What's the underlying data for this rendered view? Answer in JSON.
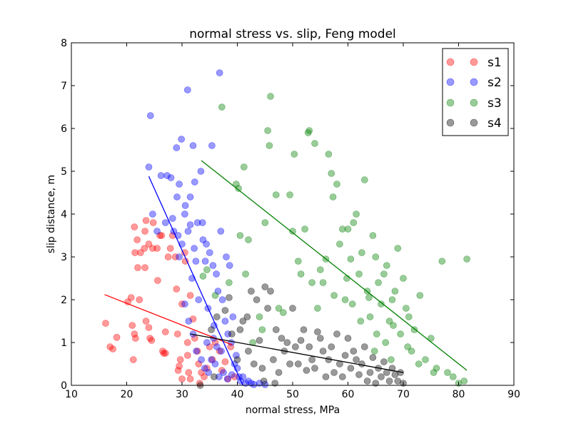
{
  "chart_data": {
    "type": "scatter",
    "title": "normal stress vs. slip, Feng model",
    "xlabel": "normal stress, MPa",
    "ylabel": "slip distance, m",
    "xlim": [
      10,
      90
    ],
    "ylim": [
      0,
      8
    ],
    "xticks": [
      10,
      20,
      30,
      40,
      50,
      60,
      70,
      80,
      90
    ],
    "yticks": [
      0,
      1,
      2,
      3,
      4,
      5,
      6,
      7,
      8
    ],
    "grid": false,
    "legend": "top-right",
    "series": [
      {
        "name": "s1",
        "color": "#ff0000",
        "fit": {
          "x": [
            16,
            39
          ],
          "y": [
            2.12,
            0.95
          ]
        },
        "points": [
          [
            16.2,
            1.45
          ],
          [
            17.0,
            0.9
          ],
          [
            17.5,
            0.85
          ],
          [
            18.2,
            1.12
          ],
          [
            20.2,
            1.95
          ],
          [
            20.8,
            2.05
          ],
          [
            21.0,
            1.4
          ],
          [
            21.4,
            1.2
          ],
          [
            21.6,
            1.1
          ],
          [
            21.2,
            0.6
          ],
          [
            21.5,
            3.1
          ],
          [
            21.4,
            3.7
          ],
          [
            21.9,
            3.4
          ],
          [
            22.0,
            2.75
          ],
          [
            22.3,
            2.0
          ],
          [
            22.5,
            3.1
          ],
          [
            23.2,
            3.2
          ],
          [
            23.3,
            3.6
          ],
          [
            23.5,
            3.85
          ],
          [
            23.3,
            2.75
          ],
          [
            23.5,
            1.5
          ],
          [
            24.0,
            1.35
          ],
          [
            24.2,
            1.1
          ],
          [
            24.5,
            1.05
          ],
          [
            24.0,
            3.3
          ],
          [
            24.8,
            3.8
          ],
          [
            24.7,
            3.2
          ],
          [
            25.5,
            3.2
          ],
          [
            25.6,
            2.45
          ],
          [
            26.0,
            3.5
          ],
          [
            26.3,
            3.5
          ],
          [
            26.5,
            0.8
          ],
          [
            26.7,
            0.75
          ],
          [
            27.0,
            1.25
          ],
          [
            27.0,
            0.75
          ],
          [
            27.5,
            3.0
          ],
          [
            27.9,
            3.2
          ],
          [
            28.3,
            3.5
          ],
          [
            28.8,
            3.0
          ],
          [
            29.0,
            2.25
          ],
          [
            29.2,
            1.2
          ],
          [
            29.3,
            0.35
          ],
          [
            29.5,
            0.45
          ],
          [
            29.7,
            0.6
          ],
          [
            30.0,
            0.15
          ],
          [
            30.5,
            3.1
          ],
          [
            30.6,
            2.9
          ],
          [
            31.0,
            1.0
          ],
          [
            31.0,
            0.7
          ],
          [
            31.2,
            0.3
          ],
          [
            31.5,
            0.15
          ],
          [
            32.0,
            1.55
          ],
          [
            32.3,
            1.1
          ],
          [
            32.8,
            0.8
          ],
          [
            33.0,
            0.5
          ],
          [
            33.5,
            0.3
          ],
          [
            34.0,
            0.2
          ],
          [
            34.5,
            0.4
          ],
          [
            35.0,
            0.9
          ],
          [
            35.5,
            0.6
          ],
          [
            36.0,
            1.0
          ],
          [
            36.8,
            0.8
          ],
          [
            37.2,
            0.35
          ],
          [
            37.8,
            0.55
          ],
          [
            38.3,
            0.15
          ],
          [
            38.8,
            0.9
          ],
          [
            39.5,
            0.2
          ],
          [
            30.0,
            1.9
          ],
          [
            31.5,
            2.1
          ],
          [
            33.2,
            0.05
          ]
        ]
      },
      {
        "name": "s2",
        "color": "#0000ff",
        "fit": {
          "x": [
            24,
            41
          ],
          "y": [
            4.88,
            0.0
          ]
        },
        "points": [
          [
            24.0,
            5.1
          ],
          [
            24.3,
            6.3
          ],
          [
            24.7,
            4.0
          ],
          [
            25.5,
            3.6
          ],
          [
            26.2,
            4.9
          ],
          [
            27.0,
            3.8
          ],
          [
            27.3,
            4.9
          ],
          [
            28.0,
            4.85
          ],
          [
            28.3,
            3.9
          ],
          [
            28.5,
            3.6
          ],
          [
            29.0,
            5.55
          ],
          [
            29.1,
            4.4
          ],
          [
            29.3,
            3.5
          ],
          [
            29.5,
            3.0
          ],
          [
            29.5,
            4.7
          ],
          [
            29.9,
            5.75
          ],
          [
            30.0,
            3.3
          ],
          [
            30.5,
            4.0
          ],
          [
            30.6,
            4.2
          ],
          [
            31.0,
            6.9
          ],
          [
            31.1,
            3.6
          ],
          [
            31.5,
            4.4
          ],
          [
            31.5,
            3.75
          ],
          [
            31.8,
            2.5
          ],
          [
            32.0,
            5.6
          ],
          [
            32.2,
            3.2
          ],
          [
            32.5,
            2.9
          ],
          [
            32.3,
            4.75
          ],
          [
            32.8,
            3.8
          ],
          [
            33.0,
            2.0
          ],
          [
            33.4,
            5.0
          ],
          [
            33.7,
            3.8
          ],
          [
            33.8,
            3.4
          ],
          [
            34.2,
            2.9
          ],
          [
            34.4,
            3.3
          ],
          [
            34.7,
            1.8
          ],
          [
            35.0,
            3.1
          ],
          [
            35.4,
            5.6
          ],
          [
            35.6,
            2.8
          ],
          [
            35.8,
            1.4
          ],
          [
            36.2,
            2.6
          ],
          [
            36.5,
            2.2
          ],
          [
            36.8,
            7.3
          ],
          [
            37.0,
            3.6
          ],
          [
            37.3,
            2.0
          ],
          [
            37.8,
            1.5
          ],
          [
            38.0,
            3.0
          ],
          [
            38.3,
            1.2
          ],
          [
            38.6,
            2.8
          ],
          [
            38.9,
            1.0
          ],
          [
            39.2,
            1.6
          ],
          [
            39.5,
            0.5
          ],
          [
            39.8,
            0.7
          ],
          [
            40.0,
            0.4
          ],
          [
            40.3,
            0.2
          ],
          [
            40.6,
            0.1
          ],
          [
            41.0,
            0.2
          ],
          [
            41.5,
            0.05
          ],
          [
            42.0,
            0.1
          ],
          [
            42.5,
            0.05
          ],
          [
            43.0,
            0.02
          ],
          [
            44.0,
            0.05
          ],
          [
            45.0,
            0.02
          ],
          [
            30.5,
            1.9
          ],
          [
            31.2,
            1.5
          ],
          [
            32.0,
            1.2
          ],
          [
            32.6,
            0.8
          ],
          [
            33.5,
            0.6
          ],
          [
            34.1,
            0.4
          ],
          [
            34.8,
            0.3
          ],
          [
            35.3,
            0.6
          ],
          [
            36.0,
            0.5
          ],
          [
            36.7,
            0.2
          ],
          [
            37.5,
            0.3
          ],
          [
            38.2,
            0.15
          ],
          [
            39.0,
            0.25
          ],
          [
            34.5,
            1.0
          ],
          [
            35.7,
            1.1
          ],
          [
            36.3,
            0.9
          ],
          [
            37.1,
            0.8
          ]
        ]
      },
      {
        "name": "s3",
        "color": "#008000",
        "fit": {
          "x": [
            33.5,
            81.5
          ],
          "y": [
            5.25,
            0.35
          ]
        },
        "points": [
          [
            33.8,
            2.55
          ],
          [
            34.5,
            2.7
          ],
          [
            36.0,
            2.1
          ],
          [
            37.2,
            6.5
          ],
          [
            38.5,
            2.4
          ],
          [
            39.8,
            4.7
          ],
          [
            40.2,
            4.6
          ],
          [
            40.5,
            3.5
          ],
          [
            41.2,
            5.1
          ],
          [
            41.5,
            2.6
          ],
          [
            42.0,
            3.4
          ],
          [
            42.8,
            1.0
          ],
          [
            44.0,
            1.6
          ],
          [
            44.5,
            1.3
          ],
          [
            45.0,
            3.8
          ],
          [
            45.5,
            5.95
          ],
          [
            45.8,
            5.6
          ],
          [
            46.0,
            6.75
          ],
          [
            47.0,
            4.45
          ],
          [
            47.5,
            1.8
          ],
          [
            48.3,
            1.7
          ],
          [
            49.5,
            4.45
          ],
          [
            50.0,
            3.6
          ],
          [
            50.3,
            5.4
          ],
          [
            51.0,
            2.9
          ],
          [
            51.5,
            2.6
          ],
          [
            52.2,
            3.65
          ],
          [
            52.8,
            5.9
          ],
          [
            53.0,
            5.95
          ],
          [
            53.5,
            2.4
          ],
          [
            54.0,
            5.65
          ],
          [
            54.5,
            1.8
          ],
          [
            55.0,
            2.7
          ],
          [
            55.5,
            2.4
          ],
          [
            56.0,
            2.95
          ],
          [
            56.5,
            5.4
          ],
          [
            57.0,
            4.95
          ],
          [
            57.3,
            4.4
          ],
          [
            57.5,
            2.1
          ],
          [
            58.0,
            4.7
          ],
          [
            58.5,
            3.3
          ],
          [
            59.0,
            3.65
          ],
          [
            59.5,
            2.0
          ],
          [
            60.0,
            3.65
          ],
          [
            60.5,
            2.95
          ],
          [
            61.0,
            3.8
          ],
          [
            61.5,
            4.0
          ],
          [
            62.0,
            2.6
          ],
          [
            62.5,
            3.1
          ],
          [
            63.0,
            4.8
          ],
          [
            63.5,
            2.2
          ],
          [
            64.0,
            1.6
          ],
          [
            64.5,
            3.5
          ],
          [
            65.0,
            3.0
          ],
          [
            65.5,
            2.4
          ],
          [
            66.0,
            1.9
          ],
          [
            66.5,
            2.6
          ],
          [
            67.0,
            2.8
          ],
          [
            67.5,
            1.5
          ],
          [
            68.0,
            2.0
          ],
          [
            68.5,
            2.2
          ],
          [
            69.0,
            3.2
          ],
          [
            69.5,
            1.2
          ],
          [
            70.0,
            2.5
          ],
          [
            70.5,
            1.8
          ],
          [
            71.0,
            1.6
          ],
          [
            71.5,
            0.8
          ],
          [
            72.0,
            1.3
          ],
          [
            73.0,
            2.1
          ],
          [
            74.0,
            0.6
          ],
          [
            75.0,
            1.1
          ],
          [
            76.0,
            0.4
          ],
          [
            77.0,
            2.9
          ],
          [
            78.0,
            0.3
          ],
          [
            79.0,
            0.2
          ],
          [
            80.0,
            0.05
          ],
          [
            81.0,
            0.1
          ],
          [
            81.5,
            2.95
          ],
          [
            62.3,
            1.5
          ],
          [
            63.8,
            2.05
          ],
          [
            65.2,
            1.2
          ],
          [
            66.8,
            1.0
          ],
          [
            68.2,
            1.4
          ],
          [
            60.8,
            1.9
          ],
          [
            59.8,
            2.5
          ],
          [
            64.8,
            0.8
          ],
          [
            67.8,
            0.6
          ],
          [
            70.8,
            0.9
          ],
          [
            72.8,
            0.5
          ],
          [
            75.5,
            0.3
          ]
        ]
      },
      {
        "name": "s4",
        "color": "#000000",
        "fit": {
          "x": [
            31.5,
            70
          ],
          "y": [
            1.2,
            0.3
          ]
        },
        "points": [
          [
            33.3,
            0.0
          ],
          [
            35.3,
            1.3
          ],
          [
            36.3,
            1.6
          ],
          [
            37.8,
            1.75
          ],
          [
            38.5,
            2.05
          ],
          [
            39.0,
            1.2
          ],
          [
            40.0,
            0.6
          ],
          [
            40.5,
            1.3
          ],
          [
            41.0,
            1.5
          ],
          [
            41.8,
            1.6
          ],
          [
            42.0,
            0.8
          ],
          [
            42.5,
            2.2
          ],
          [
            43.0,
            0.5
          ],
          [
            43.5,
            2.0
          ],
          [
            44.0,
            1.05
          ],
          [
            44.5,
            0.4
          ],
          [
            45.0,
            2.3
          ],
          [
            45.5,
            1.8
          ],
          [
            46.0,
            2.2
          ],
          [
            46.5,
            0.6
          ],
          [
            47.0,
            1.3
          ],
          [
            47.5,
            0.3
          ],
          [
            48.0,
            1.1
          ],
          [
            48.5,
            0.8
          ],
          [
            49.0,
            1.0
          ],
          [
            49.5,
            0.5
          ],
          [
            50.0,
            1.8
          ],
          [
            50.5,
            0.9
          ],
          [
            51.0,
            0.5
          ],
          [
            51.5,
            1.05
          ],
          [
            52.0,
            1.3
          ],
          [
            52.5,
            0.35
          ],
          [
            53.0,
            0.9
          ],
          [
            53.5,
            0.6
          ],
          [
            54.0,
            0.4
          ],
          [
            54.5,
            1.25
          ],
          [
            55.0,
            1.1
          ],
          [
            55.5,
            0.8
          ],
          [
            56.0,
            0.2
          ],
          [
            56.5,
            0.6
          ],
          [
            57.0,
            0.9
          ],
          [
            57.5,
            0.3
          ],
          [
            58.0,
            1.2
          ],
          [
            58.5,
            0.5
          ],
          [
            59.0,
            0.2
          ],
          [
            59.5,
            0.7
          ],
          [
            60.0,
            1.1
          ],
          [
            60.5,
            0.4
          ],
          [
            61.0,
            0.8
          ],
          [
            61.5,
            0.6
          ],
          [
            62.0,
            0.25
          ],
          [
            62.5,
            0.5
          ],
          [
            63.0,
            0.9
          ],
          [
            63.5,
            0.1
          ],
          [
            64.0,
            0.3
          ],
          [
            64.5,
            0.65
          ],
          [
            65.0,
            0.05
          ],
          [
            65.5,
            0.4
          ],
          [
            66.0,
            0.2
          ],
          [
            66.5,
            0.55
          ],
          [
            67.0,
            0.3
          ],
          [
            67.5,
            0.1
          ],
          [
            68.0,
            0.4
          ],
          [
            68.5,
            0.25
          ],
          [
            69.0,
            0.1
          ],
          [
            69.5,
            0.3
          ],
          [
            70.0,
            0.05
          ],
          [
            35.8,
            0.2
          ],
          [
            44.8,
            0.1
          ],
          [
            46.8,
            0.05
          ]
        ]
      }
    ]
  }
}
